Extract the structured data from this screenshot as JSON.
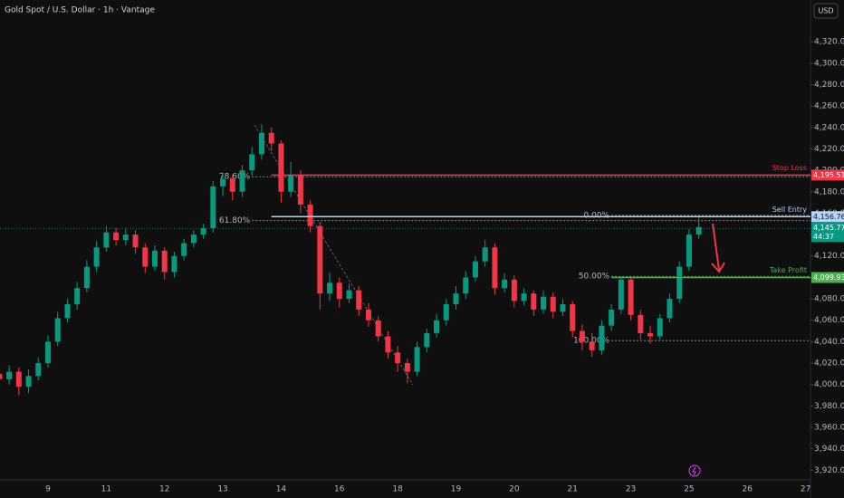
{
  "chart_data": {
    "type": "candlestick",
    "title": "Gold Spot / U.S. Dollar · 1h · Vantage",
    "currency": "USD",
    "categories": [
      null,
      null,
      null,
      null,
      null,
      "9",
      null,
      null,
      null,
      null,
      null,
      "11",
      null,
      null,
      null,
      null,
      null,
      "12",
      null,
      null,
      null,
      null,
      null,
      "13",
      null,
      null,
      null,
      null,
      null,
      "14",
      null,
      null,
      null,
      null,
      null,
      "16",
      null,
      null,
      null,
      null,
      null,
      "18",
      null,
      null,
      null,
      null,
      null,
      "19",
      null,
      null,
      null,
      null,
      null,
      "20",
      null,
      null,
      null,
      null,
      null,
      "21",
      null,
      null,
      null,
      null,
      null,
      "23",
      null,
      null,
      null,
      null,
      null,
      "25",
      null,
      null,
      null,
      null,
      null,
      "26",
      null,
      null,
      null,
      null,
      null,
      "27"
    ],
    "open": [
      4010,
      4005,
      4012,
      3998,
      4008,
      4020,
      4040,
      4062,
      4075,
      4090,
      4110,
      4128,
      4142,
      4135,
      4140,
      4128,
      4110,
      4125,
      4105,
      4120,
      4132,
      4140,
      4146,
      4185,
      4192,
      4180,
      4200,
      4215,
      4235,
      4225,
      4180,
      4195,
      4168,
      4148,
      4085,
      4095,
      4080,
      4088,
      4070,
      4060,
      4045,
      4030,
      4020,
      4012,
      4035,
      4048,
      4060,
      4075,
      4085,
      4100,
      4115,
      4128,
      4090,
      4098,
      4078,
      4085,
      4070,
      4082,
      4068,
      4075,
      4050,
      4040,
      4032,
      4055,
      4070,
      4098,
      4065,
      4048,
      4045,
      4062,
      4080,
      4110,
      4140,
      null,
      null,
      null,
      null,
      null,
      null,
      null,
      null,
      null,
      null,
      null
    ],
    "high": [
      4016,
      4018,
      4016,
      4014,
      4025,
      4046,
      4068,
      4080,
      4096,
      4116,
      4134,
      4148,
      4146,
      4146,
      4144,
      4132,
      4130,
      4128,
      4124,
      4136,
      4144,
      4150,
      4190,
      4198,
      4196,
      4205,
      4222,
      4243,
      4240,
      4228,
      4208,
      4200,
      4172,
      4152,
      4105,
      4100,
      4094,
      4092,
      4076,
      4064,
      4050,
      4036,
      4024,
      4040,
      4052,
      4066,
      4080,
      4092,
      4106,
      4120,
      4135,
      4132,
      4104,
      4102,
      4090,
      4088,
      4088,
      4086,
      4080,
      4078,
      4056,
      4048,
      4060,
      4075,
      4100,
      4100,
      4070,
      4055,
      4066,
      4085,
      4115,
      4145,
      4156,
      null,
      null,
      null,
      null,
      null,
      null,
      null,
      null,
      null,
      null,
      null
    ],
    "low": [
      3999,
      4000,
      3990,
      3992,
      4004,
      4016,
      4036,
      4058,
      4070,
      4086,
      4105,
      4124,
      4130,
      4130,
      4122,
      4104,
      4106,
      4098,
      4100,
      4116,
      4128,
      4136,
      4142,
      4176,
      4172,
      4175,
      4195,
      4210,
      4218,
      4170,
      4175,
      4160,
      4142,
      4070,
      4078,
      4072,
      4076,
      4064,
      4054,
      4040,
      4024,
      4012,
      4001,
      4008,
      4030,
      4044,
      4055,
      4070,
      4080,
      4096,
      4110,
      4084,
      4086,
      4072,
      4074,
      4064,
      4066,
      4062,
      4064,
      4044,
      4032,
      4026,
      4028,
      4050,
      4066,
      4060,
      4042,
      4038,
      4042,
      4058,
      4076,
      4106,
      4136,
      null,
      null,
      null,
      null,
      null,
      null,
      null,
      null,
      null,
      null,
      null
    ],
    "close": [
      4005,
      4012,
      3998,
      4008,
      4020,
      4040,
      4062,
      4075,
      4090,
      4110,
      4128,
      4142,
      4135,
      4140,
      4128,
      4110,
      4125,
      4105,
      4120,
      4132,
      4140,
      4146,
      4185,
      4192,
      4180,
      4200,
      4215,
      4235,
      4225,
      4180,
      4195,
      4168,
      4148,
      4085,
      4095,
      4080,
      4088,
      4070,
      4060,
      4045,
      4030,
      4020,
      4012,
      4035,
      4048,
      4060,
      4075,
      4085,
      4100,
      4115,
      4128,
      4090,
      4098,
      4078,
      4085,
      4070,
      4082,
      4068,
      4075,
      4050,
      4040,
      4032,
      4055,
      4070,
      4098,
      4065,
      4048,
      4045,
      4062,
      4080,
      4110,
      4140,
      4147,
      null,
      null,
      null,
      null,
      null,
      null,
      null,
      null,
      null,
      null,
      null
    ],
    "up_color": "#089981",
    "down_color": "#f23645",
    "ylim": [
      3911,
      4359
    ],
    "yticks": [
      {
        "value": 3920,
        "label": "3,920.00"
      },
      {
        "value": 3940,
        "label": "3,940.00"
      },
      {
        "value": 3960,
        "label": "3,960.00"
      },
      {
        "value": 3980,
        "label": "3,980.00"
      },
      {
        "value": 4000,
        "label": "4,000.00"
      },
      {
        "value": 4020,
        "label": "4,020.00"
      },
      {
        "value": 4040,
        "label": "4,040.00"
      },
      {
        "value": 4060,
        "label": "4,060.00"
      },
      {
        "value": 4080,
        "label": "4,080.00"
      },
      {
        "value": 4100,
        "label": "4,100.00"
      },
      {
        "value": 4120,
        "label": "4,120.00"
      },
      {
        "value": 4140,
        "label": "4,140.00"
      },
      {
        "value": 4160,
        "label": "4,160.00"
      },
      {
        "value": 4180,
        "label": "4,180.00"
      },
      {
        "value": 4200,
        "label": "4,200.00"
      },
      {
        "value": 4220,
        "label": "4,220.00"
      },
      {
        "value": 4240,
        "label": "4,240.00"
      },
      {
        "value": 4260,
        "label": "4,260.00"
      },
      {
        "value": 4280,
        "label": "4,280.00"
      },
      {
        "value": 4300,
        "label": "4,300.00"
      },
      {
        "value": 4320,
        "label": "4,320.00"
      }
    ],
    "levels": [
      {
        "name": "Stop Loss",
        "value": 4195.51,
        "label": "4,195.51",
        "color": "#f23645",
        "start": 28
      },
      {
        "name": "Sell Entry",
        "value": 4156.76,
        "label": "4,156.76",
        "color": "#b3d4f5",
        "start": 28
      },
      {
        "name": "Take Profit",
        "value": 4099.93,
        "label": "4,099.93",
        "color": "#4caf50",
        "start": 63
      }
    ],
    "current_price": {
      "value": 4145.77,
      "label": "4,145.77",
      "countdown": "44:37",
      "color": "#089981"
    },
    "fib_levels": [
      {
        "text": "78.60%",
        "price": 4194,
        "start": 26
      },
      {
        "text": "61.80%",
        "price": 4153,
        "start": 26
      },
      {
        "text": "0.00%",
        "price": 4158,
        "start": 63
      },
      {
        "text": "50.00%",
        "price": 4101,
        "start": 63
      },
      {
        "text": "100.00%",
        "price": 4041,
        "start": 63
      }
    ]
  }
}
